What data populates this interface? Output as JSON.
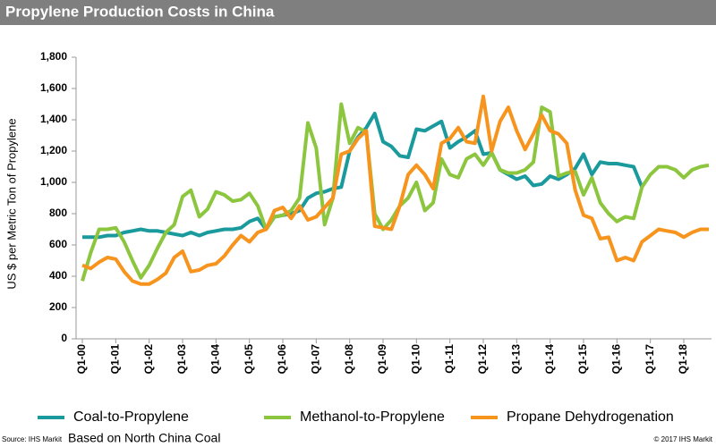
{
  "chart_data": {
    "type": "line",
    "title": "Propylene Production Costs in China",
    "ylabel": "US $ per Metric Ton of Propylene",
    "source": "Source: IHS Markit",
    "note": "Based on North China Coal",
    "copyright": "© 2017 IHS Markit",
    "categories": [
      "Q1-00",
      null,
      null,
      null,
      "Q1-01",
      null,
      null,
      null,
      "Q1-02",
      null,
      null,
      null,
      "Q1-03",
      null,
      null,
      null,
      "Q1-04",
      null,
      null,
      null,
      "Q1-05",
      null,
      null,
      null,
      "Q1-06",
      null,
      null,
      null,
      "Q1-07",
      null,
      null,
      null,
      "Q1-08",
      null,
      null,
      null,
      "Q1-09",
      null,
      null,
      null,
      "Q1-10",
      null,
      null,
      null,
      "Q1-11",
      null,
      null,
      null,
      "Q1-12",
      null,
      null,
      null,
      "Q1-13",
      null,
      null,
      null,
      "Q1-14",
      null,
      null,
      null,
      "Q1-15",
      null,
      null,
      null,
      "Q1-16",
      null,
      null,
      null,
      "Q1-17",
      null,
      null,
      null,
      "Q1-18",
      null,
      null,
      null
    ],
    "series": [
      {
        "name": "Coal-to-Propylene",
        "color": "#1a9a9c",
        "values": [
          650,
          650,
          650,
          660,
          660,
          680,
          690,
          700,
          690,
          690,
          680,
          670,
          660,
          680,
          660,
          680,
          690,
          700,
          700,
          710,
          750,
          770,
          700,
          780,
          790,
          800,
          820,
          900,
          930,
          940,
          960,
          970,
          1200,
          1290,
          1350,
          1440,
          1260,
          1230,
          1170,
          1160,
          1340,
          1330,
          1360,
          1390,
          1220,
          1260,
          1290,
          1330,
          1180,
          1190,
          1080,
          1050,
          1020,
          1040,
          980,
          990,
          1040,
          1020,
          1050,
          1090,
          1180,
          1050,
          1130,
          1120,
          1120,
          1110,
          1100,
          970,
          null,
          null,
          null,
          null,
          null,
          null,
          null,
          null
        ]
      },
      {
        "name": "Methanol-to-Propylene",
        "color": "#8cc63f",
        "values": [
          370,
          550,
          700,
          700,
          710,
          620,
          500,
          390,
          470,
          580,
          680,
          730,
          910,
          950,
          780,
          830,
          940,
          920,
          880,
          890,
          930,
          850,
          700,
          780,
          790,
          820,
          900,
          1380,
          1220,
          730,
          900,
          1500,
          1250,
          1350,
          1320,
          800,
          700,
          760,
          850,
          900,
          1000,
          820,
          870,
          1150,
          1050,
          1030,
          1150,
          1180,
          1110,
          1190,
          1080,
          1060,
          1060,
          1080,
          1130,
          1480,
          1450,
          1040,
          1060,
          1070,
          920,
          1030,
          870,
          800,
          750,
          780,
          770,
          970,
          1050,
          1100,
          1100,
          1080,
          1030,
          1080,
          1100,
          1110
        ]
      },
      {
        "name": "Propane Dehydrogenation",
        "color": "#f7941d",
        "values": [
          470,
          450,
          490,
          520,
          510,
          430,
          370,
          350,
          350,
          380,
          420,
          520,
          560,
          430,
          440,
          470,
          480,
          530,
          600,
          660,
          620,
          680,
          700,
          820,
          840,
          770,
          850,
          760,
          780,
          840,
          900,
          1180,
          1200,
          1280,
          1330,
          720,
          710,
          700,
          850,
          1050,
          1110,
          1050,
          960,
          1250,
          1280,
          1350,
          1260,
          1250,
          1550,
          1200,
          1390,
          1480,
          1330,
          1210,
          1310,
          1430,
          1330,
          1310,
          1250,
          950,
          790,
          770,
          640,
          650,
          500,
          520,
          500,
          620,
          660,
          700,
          690,
          680,
          650,
          680,
          700,
          700
        ]
      }
    ],
    "ylim": [
      0,
      1800
    ],
    "yticks": [
      0,
      200,
      400,
      600,
      800,
      {
        "value": 1000,
        "label": "1,000"
      },
      {
        "value": 1200,
        "label": "1,200"
      },
      {
        "value": 1400,
        "label": "1,400"
      },
      {
        "value": 1600,
        "label": "1,600"
      },
      {
        "value": 1800,
        "label": "1,800"
      }
    ],
    "grid": false
  }
}
